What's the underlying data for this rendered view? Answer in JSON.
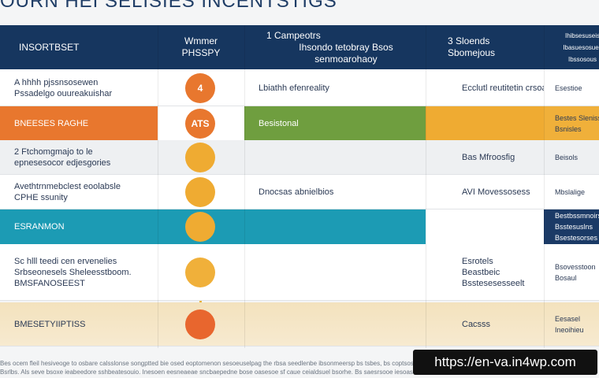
{
  "title": "OURN HEI SELISIES INCENTSTIGS",
  "header": [
    [
      "INSORTBSET"
    ],
    [
      "Wmmer",
      "PHSSPY"
    ],
    [
      "1 Campeotrs",
      "Ihsondo tetobray Bsos senmoarohaoy"
    ],
    [
      "3 Sloends",
      "Sbomejous"
    ],
    [
      "Ihibsesuseis",
      "Ibasuesosues",
      "Ibssosous"
    ]
  ],
  "rows": [
    {
      "label": [
        "A hhhh pjssnsosewen",
        "Pssadelgo ouureakuishar"
      ],
      "badge": "4",
      "col3": [
        "Lbiathh efenreality"
      ],
      "col4": [
        "Ecclutl reutitetin crsoabis"
      ],
      "col5": [
        "Esestioe"
      ]
    },
    {
      "label": [
        "BNEESES RAGHE"
      ],
      "badge": "ATS",
      "col3": [
        "Besistonal"
      ],
      "col5": [
        "Bestes Sleniss",
        "Bsnisles"
      ]
    },
    {
      "label": [
        "2 Ftchomgmajo to le",
        "epnesesocor edjesgories"
      ],
      "col4": [
        "Bas Mfroosfig"
      ],
      "col5": [
        "Beisols"
      ]
    },
    {
      "label": [
        "Avethtrnmebclest eoolabsle",
        "CPHE ssunity"
      ],
      "col3": [
        "Dnocsas abnielbios"
      ],
      "col4": [
        "AVI Movessosess"
      ],
      "col5": [
        "Mbslalige"
      ]
    },
    {
      "label": [
        "ESRANMON"
      ],
      "col5": [
        "Bestbssmnoirs",
        "Bsstesuslns",
        "Bsestesorses"
      ]
    },
    {
      "label": [
        "Sc hlll teedi cen ervenelies",
        "Srbseonesels Sheleesstboom.",
        "BMSFANOSEEST"
      ],
      "col4": [
        "Esrotels",
        "Beastbeic",
        "Bsstesesesseelt"
      ],
      "col5": [
        "Bsovesstoon",
        "Bosaul"
      ]
    },
    {
      "label": [
        "BMESETYIIPTISS"
      ],
      "col4": [
        "Cacsss"
      ],
      "col5": [
        "Eesasel",
        "Ineoihieu"
      ]
    }
  ],
  "footer": [
    "Bes ocem fleil hesiveoge to osbare calsslonse songptted bie osed eoptomenon sesoeuselpag the rbsa seedlenbe ibsonmeersp bs tsbes, bs coptsosal",
    "Bsrlbs. Als seve bsoxe ieabeedore sshbeatesouio. Inesoen eesneaeae sncbaepedne bose oasesoe sf caue ceialdsuel bsorhe. Bs saesrsooe iesoasosl."
  ],
  "watermark": "https://en-va.in4wp.com"
}
